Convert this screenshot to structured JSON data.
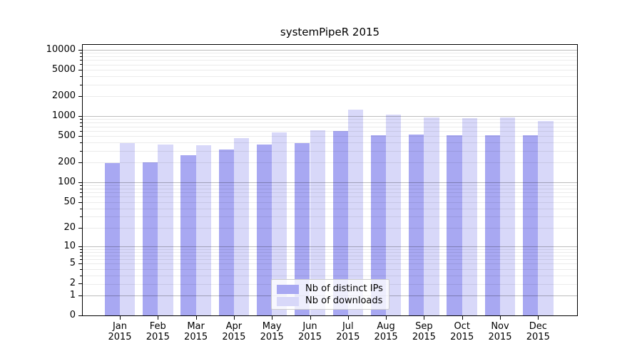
{
  "chart_data": {
    "type": "bar",
    "title": "systemPipeR 2015",
    "yscale": "log1p",
    "ylim": [
      0,
      14000
    ],
    "yticks": [
      0,
      1,
      2,
      5,
      10,
      20,
      50,
      100,
      200,
      500,
      1000,
      2000,
      5000,
      10000
    ],
    "grid": "on (log minor lines, darker decade lines)",
    "legend_position": "lower center",
    "categories": [
      "Jan",
      "Feb",
      "Mar",
      "Apr",
      "May",
      "Jun",
      "Jul",
      "Aug",
      "Sep",
      "Oct",
      "Nov",
      "Dec"
    ],
    "year_label": "2015",
    "series": [
      {
        "name": "Nb of distinct IPs",
        "color": "#a8a8f2",
        "values": [
          195,
          200,
          260,
          310,
          370,
          390,
          590,
          520,
          530,
          515,
          520,
          510
        ]
      },
      {
        "name": "Nb of downloads",
        "color": "#d8d8f9",
        "values": [
          395,
          370,
          360,
          470,
          570,
          615,
          1265,
          1050,
          965,
          930,
          955,
          850
        ]
      }
    ]
  },
  "colors": {
    "background": "#ffffff",
    "spine": "#000000",
    "text": "#000000",
    "major_grid": "rgba(0,0,0,0.26)",
    "minor_grid": "rgba(0,0,0,0.08)",
    "legend_border": "#cccccc",
    "legend_background": "rgba(255,255,255,0.8)"
  }
}
